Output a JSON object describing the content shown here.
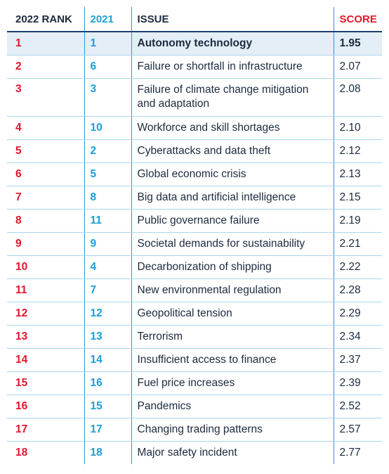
{
  "headers": {
    "rank_2022": "2022 RANK",
    "rank_2021": "2021",
    "issue": "ISSUE",
    "score": "SCORE"
  },
  "rows": [
    {
      "rank": "1",
      "prev": "1",
      "issue": "Autonomy technology",
      "score": "1.95"
    },
    {
      "rank": "2",
      "prev": "6",
      "issue": "Failure or shortfall in infrastructure",
      "score": "2.07"
    },
    {
      "rank": "3",
      "prev": "3",
      "issue": "Failure of climate change mitigation and adaptation",
      "score": "2.08"
    },
    {
      "rank": "4",
      "prev": "10",
      "issue": "Workforce and skill shortages",
      "score": "2.10"
    },
    {
      "rank": "5",
      "prev": "2",
      "issue": "Cyberattacks and data theft",
      "score": "2.12"
    },
    {
      "rank": "6",
      "prev": "5",
      "issue": "Global economic crisis",
      "score": "2.13"
    },
    {
      "rank": "7",
      "prev": "8",
      "issue": "Big data and artificial intelligence",
      "score": "2.15"
    },
    {
      "rank": "8",
      "prev": "11",
      "issue": "Public governance failure",
      "score": "2.19"
    },
    {
      "rank": "9",
      "prev": "9",
      "issue": "Societal demands for sustainability",
      "score": "2.21"
    },
    {
      "rank": "10",
      "prev": "4",
      "issue": "Decarbonization of shipping",
      "score": "2.22"
    },
    {
      "rank": "11",
      "prev": "7",
      "issue": "New environmental regulation",
      "score": "2.28"
    },
    {
      "rank": "12",
      "prev": "12",
      "issue": "Geopolitical tension",
      "score": "2.29"
    },
    {
      "rank": "13",
      "prev": "13",
      "issue": "Terrorism",
      "score": "2.34"
    },
    {
      "rank": "14",
      "prev": "14",
      "issue": "Insufficient access to finance",
      "score": "2.37"
    },
    {
      "rank": "15",
      "prev": "16",
      "issue": "Fuel price increases",
      "score": "2.39"
    },
    {
      "rank": "16",
      "prev": "15",
      "issue": "Pandemics",
      "score": "2.52"
    },
    {
      "rank": "17",
      "prev": "17",
      "issue": "Changing trading patterns",
      "score": "2.57"
    },
    {
      "rank": "18",
      "prev": "18",
      "issue": "Major safety incident",
      "score": "2.77"
    }
  ],
  "colors": {
    "rank_red": "#e3152b",
    "prev_blue": "#1b9fd8",
    "highlight_bg": "#e4eef6"
  }
}
